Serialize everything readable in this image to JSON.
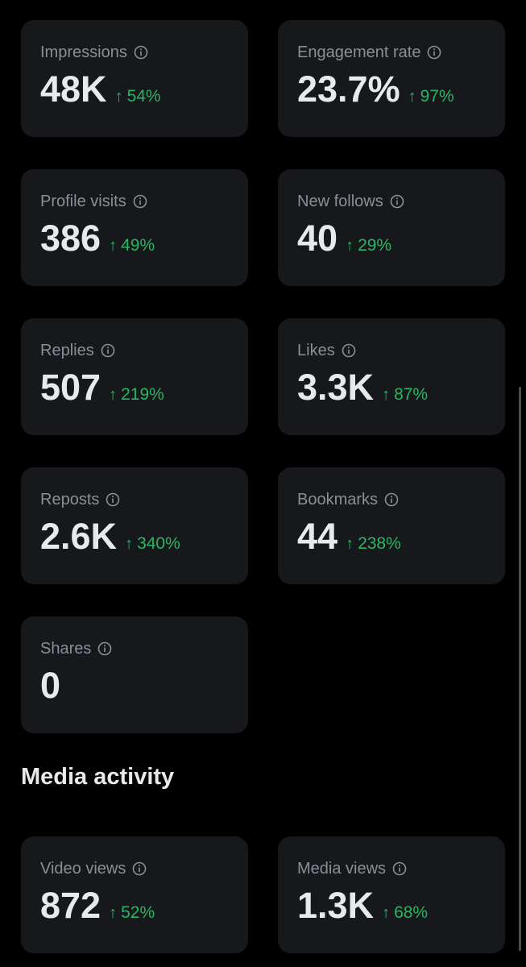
{
  "metrics": {
    "impressions": {
      "label": "Impressions",
      "value": "48K",
      "change": "54%"
    },
    "engagement_rate": {
      "label": "Engagement rate",
      "value": "23.7%",
      "change": "97%"
    },
    "profile_visits": {
      "label": "Profile visits",
      "value": "386",
      "change": "49%"
    },
    "new_follows": {
      "label": "New follows",
      "value": "40",
      "change": "29%"
    },
    "replies": {
      "label": "Replies",
      "value": "507",
      "change": "219%"
    },
    "likes": {
      "label": "Likes",
      "value": "3.3K",
      "change": "87%"
    },
    "reposts": {
      "label": "Reposts",
      "value": "2.6K",
      "change": "340%"
    },
    "bookmarks": {
      "label": "Bookmarks",
      "value": "44",
      "change": "238%"
    },
    "shares": {
      "label": "Shares",
      "value": "0"
    }
  },
  "media_section": {
    "title": "Media activity",
    "video_views": {
      "label": "Video views",
      "value": "872",
      "change": "52%"
    },
    "media_views": {
      "label": "Media views",
      "value": "1.3K",
      "change": "68%"
    }
  },
  "icons": {
    "info": "info-circle-icon",
    "increase": "arrow-up-icon"
  },
  "colors": {
    "background": "#000000",
    "card": "#16181c",
    "label": "#8b8f95",
    "value": "#e7e9ea",
    "positive": "#27b661"
  }
}
